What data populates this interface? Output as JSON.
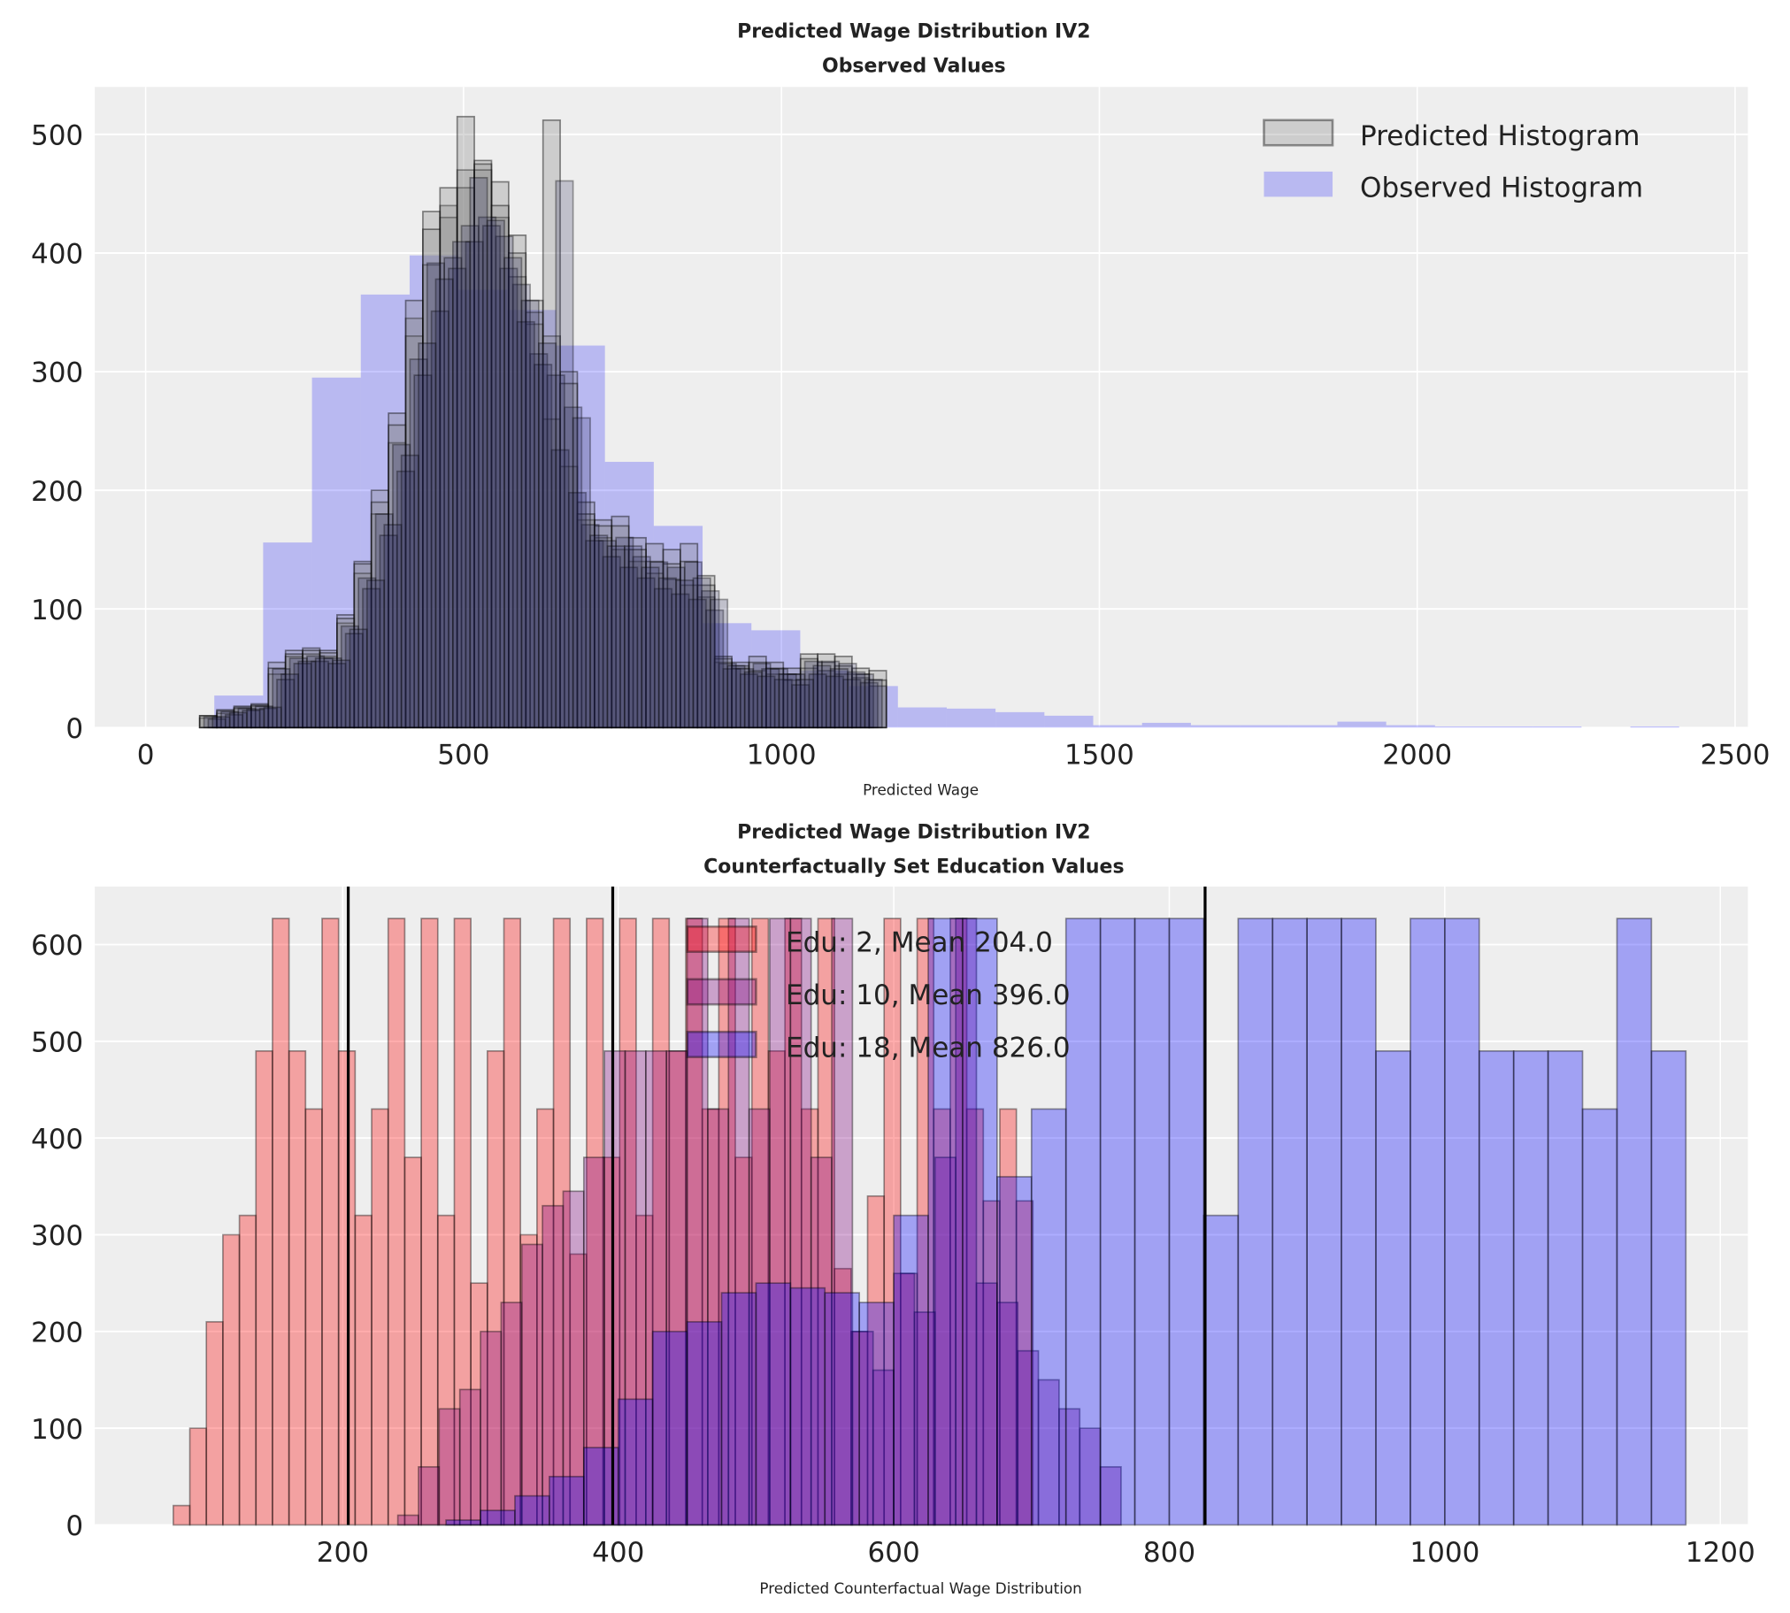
{
  "chart_data": [
    {
      "type": "bar",
      "title_line1": "Predicted Wage Distribution IV2",
      "title_line2": "Observed Values",
      "xlabel": "Predicted Wage",
      "ylabel": "",
      "xlim": [
        -80,
        2520
      ],
      "ylim": [
        0,
        540
      ],
      "xticks": [
        "0",
        "500",
        "1000",
        "1500",
        "2000",
        "2500"
      ],
      "yticks": [
        "0",
        "100",
        "200",
        "300",
        "400",
        "500"
      ],
      "grid": true,
      "legend_position": "top-right",
      "legend": [
        "Predicted Histogram",
        "Observed Histogram"
      ],
      "observed": {
        "name": "Observed Histogram",
        "color": "#0000ff",
        "bin_start": 108,
        "bin_width": 76.8,
        "counts": [
          27,
          156,
          295,
          365,
          398,
          369,
          352,
          322,
          224,
          170,
          88,
          82,
          48,
          35,
          17,
          16,
          13,
          10,
          2,
          4,
          2,
          2,
          2,
          5,
          2,
          1,
          1,
          1,
          0,
          1
        ]
      },
      "predicted": {
        "name": "Predicted Histogram",
        "color": "#808080",
        "bin_start": 85,
        "bin_width": 27,
        "draws": [
          [
            10,
            15,
            18,
            20,
            55,
            65,
            67,
            65,
            95,
            140,
            200,
            265,
            345,
            435,
            440,
            470,
            478,
            460,
            415,
            350,
            330,
            300,
            190,
            175,
            178,
            160,
            155,
            150,
            155,
            128,
            60,
            55,
            60,
            55,
            50,
            62,
            62,
            60,
            50,
            48
          ],
          [
            8,
            12,
            16,
            18,
            45,
            60,
            62,
            60,
            88,
            130,
            180,
            240,
            330,
            390,
            430,
            455,
            470,
            430,
            380,
            340,
            260,
            220,
            175,
            160,
            150,
            140,
            130,
            125,
            120,
            110,
            55,
            50,
            48,
            45,
            40,
            50,
            48,
            45,
            42,
            35
          ],
          [
            10,
            14,
            17,
            19,
            50,
            62,
            65,
            63,
            92,
            138,
            190,
            255,
            360,
            420,
            455,
            515,
            475,
            440,
            400,
            360,
            512,
            290,
            180,
            170,
            170,
            150,
            140,
            138,
            140,
            120,
            58,
            52,
            55,
            50,
            45,
            58,
            55,
            52,
            45,
            40
          ]
        ]
      }
    },
    {
      "type": "bar",
      "title_line1": "Predicted Wage Distribution IV2",
      "title_line2": "Counterfactually Set Education Values",
      "xlabel": "Predicted Counterfactual Wage Distribution",
      "ylabel": "",
      "xlim": [
        20,
        1220
      ],
      "ylim": [
        0,
        660
      ],
      "xticks": [
        "200",
        "400",
        "600",
        "800",
        "1000",
        "1200"
      ],
      "yticks": [
        "0",
        "100",
        "200",
        "300",
        "400",
        "500",
        "600"
      ],
      "grid": true,
      "legend_position": "top-center",
      "series": [
        {
          "name": "Edu: 2, Mean 204.0",
          "color": "#ff0000",
          "mean": 204.0,
          "bin_start": 65,
          "bin_width": 12,
          "counts": [
            0,
            20,
            100,
            210,
            300,
            320,
            490,
            627,
            490,
            430,
            627,
            490,
            320,
            430,
            627,
            380,
            627,
            320,
            627,
            250,
            490,
            627,
            300,
            430,
            627,
            280,
            627,
            380,
            627,
            320,
            627,
            490,
            627,
            430,
            627,
            380,
            627,
            490,
            627,
            430,
            627,
            265,
            200,
            340,
            627,
            260,
            627,
            430,
            627,
            430,
            335,
            430,
            335
          ]
        },
        {
          "name": "Edu: 10, Mean 396.0",
          "color": "#800080",
          "mean": 396.0,
          "bin_start": 240,
          "bin_width": 15,
          "counts": [
            10,
            60,
            120,
            140,
            200,
            230,
            290,
            330,
            345,
            380,
            490,
            490,
            490,
            490,
            627,
            430,
            627,
            430,
            627,
            627,
            380,
            627,
            200,
            160,
            260,
            220,
            380,
            627,
            250,
            230,
            180,
            150,
            120,
            100,
            60
          ]
        },
        {
          "name": "Edu: 18, Mean 826.0",
          "color": "#0000ff",
          "mean": 826.0,
          "bin_start": 275,
          "bin_width": 25,
          "counts": [
            5,
            15,
            30,
            50,
            80,
            130,
            200,
            210,
            240,
            250,
            245,
            240,
            230,
            320,
            627,
            627,
            360,
            430,
            627,
            627,
            627,
            627,
            320,
            627,
            627,
            627,
            627,
            490,
            627,
            627,
            490,
            490,
            490,
            430,
            627,
            490
          ]
        }
      ]
    }
  ]
}
